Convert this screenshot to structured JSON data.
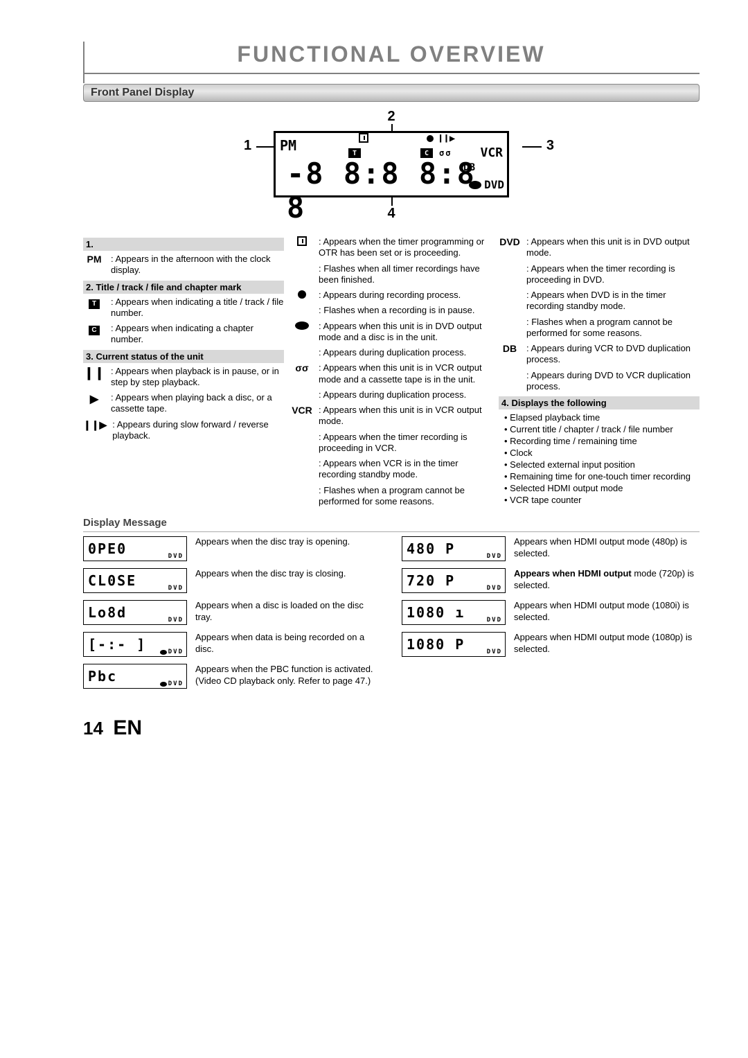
{
  "page": {
    "title": "FUNCTIONAL OVERVIEW",
    "number": "14",
    "lang": "EN"
  },
  "section_front_panel": "Front Panel Display",
  "callouts": {
    "n1": "1",
    "n2": "2",
    "n3": "3",
    "n4": "4"
  },
  "display_box": {
    "pm": "PM",
    "digits": "-8 8:8 8:8 8",
    "t": "T",
    "c": "C",
    "pauseplay": "❙❙▶",
    "tape": "σσ",
    "vcr": "VCR",
    "db": "DB",
    "dvd": "DVD"
  },
  "heads": {
    "one": "1.",
    "two": "2. Title / track / file and chapter mark",
    "three": "3. Current status of the unit",
    "four": "4. Displays the following"
  },
  "col1": {
    "pm_sym": "PM",
    "pm_txt": "Appears in the afternoon with the clock display.",
    "t_txt": "Appears when indicating a title / track / file number.",
    "c_txt": "Appears when indicating a chapter number.",
    "pause_txt": "Appears when playback is in pause, or in step by step playback.",
    "play_txt": "Appears when playing back a disc, or a cassette tape.",
    "slow_sym": "❙❙▶",
    "slow_txt": "Appears during slow forward / reverse playback."
  },
  "col2": {
    "clock_1": "Appears when the timer programming or OTR has been set or is proceeding.",
    "clock_2": "Flashes when all timer recordings have been finished.",
    "rec_1": "Appears during recording process.",
    "rec_2": "Flashes when a recording is in pause.",
    "disc_1": "Appears when this unit is in DVD output mode and a disc is in the unit.",
    "disc_2": "Appears during duplication process.",
    "tape_sym": "σσ",
    "tape_1": "Appears when this unit is in VCR output mode and a cassette tape is in the unit.",
    "tape_2": "Appears during duplication process.",
    "vcr_sym": "VCR",
    "vcr_1": "Appears when this unit is in VCR output mode.",
    "vcr_2": "Appears when the timer recording is proceeding in VCR.",
    "vcr_3": "Appears when VCR is in the timer recording standby mode.",
    "vcr_4": "Flashes when a program cannot be performed for some reasons."
  },
  "col3": {
    "dvd_sym": "DVD",
    "dvd_1": "Appears when this unit is in DVD output mode.",
    "dvd_2": "Appears when the timer recording is proceeding in DVD.",
    "dvd_3": "Appears when DVD is in the timer recording standby mode.",
    "dvd_4": "Flashes when a program cannot be performed for some reasons.",
    "db_sym": "DB",
    "db_1": "Appears during VCR to DVD duplication process.",
    "db_2": "Appears during DVD to VCR duplication process.",
    "bullets": {
      "b1": "Elapsed playback time",
      "b2": "Current title / chapter / track / file number",
      "b3": "Recording time / remaining time",
      "b4": "Clock",
      "b5": "Selected external input position",
      "b6": "Remaining time for one-touch timer recording",
      "b7": "Selected HDMI output mode",
      "b8": "VCR tape counter"
    }
  },
  "section_display_message": "Display Message",
  "messages": {
    "left": [
      {
        "seg": "0PE0",
        "tag": "DVD",
        "disc": false,
        "desc": "Appears when the disc tray is opening."
      },
      {
        "seg": "CL0SE",
        "tag": "DVD",
        "disc": false,
        "desc": "Appears when the disc tray is closing."
      },
      {
        "seg": "Lo8d",
        "tag": "DVD",
        "disc": false,
        "desc": "Appears when a disc is loaded on the disc tray."
      },
      {
        "seg": "[-:- ]",
        "tag": "DVD",
        "disc": true,
        "desc": "Appears when data is being recorded on a disc."
      },
      {
        "seg": "Pbc",
        "tag": "DVD",
        "disc": true,
        "desc": "Appears when the PBC function is activated. (Video CD playback only. Refer to page 47.)"
      }
    ],
    "right": [
      {
        "seg": "480  P",
        "tag": "DVD",
        "disc": false,
        "desc": "Appears when HDMI output mode (480p) is selected."
      },
      {
        "seg": "720  P",
        "tag": "DVD",
        "disc": false,
        "desc": "Appears when HDMI output mode (720p) is selected.",
        "bold": true
      },
      {
        "seg": "1080 ı",
        "tag": "DVD",
        "disc": false,
        "desc": "Appears when HDMI output mode (1080i) is selected."
      },
      {
        "seg": "1080 P",
        "tag": "DVD",
        "disc": false,
        "desc": "Appears when HDMI output mode (1080p) is selected."
      }
    ]
  },
  "colors": {
    "title_grey": "#808080",
    "bar_grad_top": "#cfcfcf",
    "bar_grad_bot": "#b8b8b8",
    "subbar_grey": "#d8d8d8"
  }
}
